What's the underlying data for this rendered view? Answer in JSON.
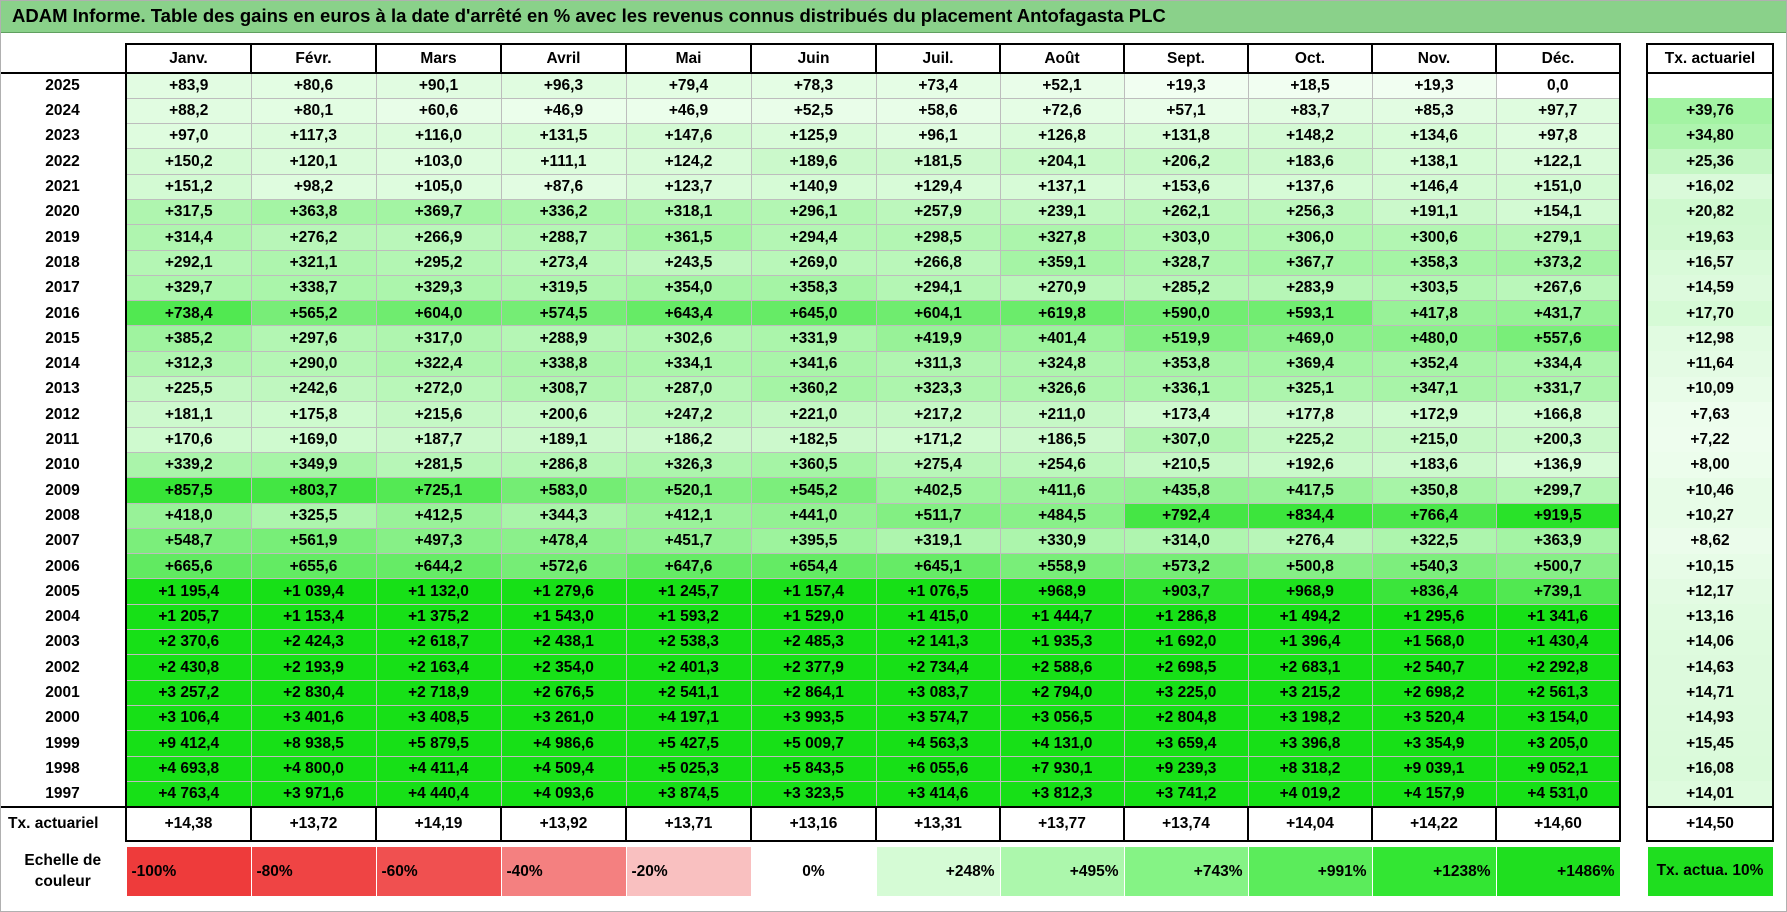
{
  "title": "ADAM Informe. Table des gains en euros à la date d'arrêté en % avec les revenus connus distribués du placement Antofagasta PLC",
  "months": [
    "Janv.",
    "Févr.",
    "Mars",
    "Avril",
    "Mai",
    "Juin",
    "Juil.",
    "Août",
    "Sept.",
    "Oct.",
    "Nov.",
    "Déc."
  ],
  "actuarial_header": "Tx. actuariel",
  "rows": [
    {
      "year": "2025",
      "values": [
        "+83,9",
        "+80,6",
        "+90,1",
        "+96,3",
        "+79,4",
        "+78,3",
        "+73,4",
        "+52,1",
        "+19,3",
        "+18,5",
        "+19,3",
        "0,0"
      ],
      "actuarial": ""
    },
    {
      "year": "2024",
      "values": [
        "+88,2",
        "+80,1",
        "+60,6",
        "+46,9",
        "+46,9",
        "+52,5",
        "+58,6",
        "+72,6",
        "+57,1",
        "+83,7",
        "+85,3",
        "+97,7"
      ],
      "actuarial": "+39,76"
    },
    {
      "year": "2023",
      "values": [
        "+97,0",
        "+117,3",
        "+116,0",
        "+131,5",
        "+147,6",
        "+125,9",
        "+96,1",
        "+126,8",
        "+131,8",
        "+148,2",
        "+134,6",
        "+97,8"
      ],
      "actuarial": "+34,80"
    },
    {
      "year": "2022",
      "values": [
        "+150,2",
        "+120,1",
        "+103,0",
        "+111,1",
        "+124,2",
        "+189,6",
        "+181,5",
        "+204,1",
        "+206,2",
        "+183,6",
        "+138,1",
        "+122,1"
      ],
      "actuarial": "+25,36"
    },
    {
      "year": "2021",
      "values": [
        "+151,2",
        "+98,2",
        "+105,0",
        "+87,6",
        "+123,7",
        "+140,9",
        "+129,4",
        "+137,1",
        "+153,6",
        "+137,6",
        "+146,4",
        "+151,0"
      ],
      "actuarial": "+16,02"
    },
    {
      "year": "2020",
      "values": [
        "+317,5",
        "+363,8",
        "+369,7",
        "+336,2",
        "+318,1",
        "+296,1",
        "+257,9",
        "+239,1",
        "+262,1",
        "+256,3",
        "+191,1",
        "+154,1"
      ],
      "actuarial": "+20,82"
    },
    {
      "year": "2019",
      "values": [
        "+314,4",
        "+276,2",
        "+266,9",
        "+288,7",
        "+361,5",
        "+294,4",
        "+298,5",
        "+327,8",
        "+303,0",
        "+306,0",
        "+300,6",
        "+279,1"
      ],
      "actuarial": "+19,63"
    },
    {
      "year": "2018",
      "values": [
        "+292,1",
        "+321,1",
        "+295,2",
        "+273,4",
        "+243,5",
        "+269,0",
        "+266,8",
        "+359,1",
        "+328,7",
        "+367,7",
        "+358,3",
        "+373,2"
      ],
      "actuarial": "+16,57"
    },
    {
      "year": "2017",
      "values": [
        "+329,7",
        "+338,7",
        "+329,3",
        "+319,5",
        "+354,0",
        "+358,3",
        "+294,1",
        "+270,9",
        "+285,2",
        "+283,9",
        "+303,5",
        "+267,6"
      ],
      "actuarial": "+14,59"
    },
    {
      "year": "2016",
      "values": [
        "+738,4",
        "+565,2",
        "+604,0",
        "+574,5",
        "+643,4",
        "+645,0",
        "+604,1",
        "+619,8",
        "+590,0",
        "+593,1",
        "+417,8",
        "+431,7"
      ],
      "actuarial": "+17,70"
    },
    {
      "year": "2015",
      "values": [
        "+385,2",
        "+297,6",
        "+317,0",
        "+288,9",
        "+302,6",
        "+331,9",
        "+419,9",
        "+401,4",
        "+519,9",
        "+469,0",
        "+480,0",
        "+557,6"
      ],
      "actuarial": "+12,98"
    },
    {
      "year": "2014",
      "values": [
        "+312,3",
        "+290,0",
        "+322,4",
        "+338,8",
        "+334,1",
        "+341,6",
        "+311,3",
        "+324,8",
        "+353,8",
        "+369,4",
        "+352,4",
        "+334,4"
      ],
      "actuarial": "+11,64"
    },
    {
      "year": "2013",
      "values": [
        "+225,5",
        "+242,6",
        "+272,0",
        "+308,7",
        "+287,0",
        "+360,2",
        "+323,3",
        "+326,6",
        "+336,1",
        "+325,1",
        "+347,1",
        "+331,7"
      ],
      "actuarial": "+10,09"
    },
    {
      "year": "2012",
      "values": [
        "+181,1",
        "+175,8",
        "+215,6",
        "+200,6",
        "+247,2",
        "+221,0",
        "+217,2",
        "+211,0",
        "+173,4",
        "+177,8",
        "+172,9",
        "+166,8"
      ],
      "actuarial": "+7,63"
    },
    {
      "year": "2011",
      "values": [
        "+170,6",
        "+169,0",
        "+187,7",
        "+189,1",
        "+186,2",
        "+182,5",
        "+171,2",
        "+186,5",
        "+307,0",
        "+225,2",
        "+215,0",
        "+200,3"
      ],
      "actuarial": "+7,22"
    },
    {
      "year": "2010",
      "values": [
        "+339,2",
        "+349,9",
        "+281,5",
        "+286,8",
        "+326,3",
        "+360,5",
        "+275,4",
        "+254,6",
        "+210,5",
        "+192,6",
        "+183,6",
        "+136,9"
      ],
      "actuarial": "+8,00"
    },
    {
      "year": "2009",
      "values": [
        "+857,5",
        "+803,7",
        "+725,1",
        "+583,0",
        "+520,1",
        "+545,2",
        "+402,5",
        "+411,6",
        "+435,8",
        "+417,5",
        "+350,8",
        "+299,7"
      ],
      "actuarial": "+10,46"
    },
    {
      "year": "2008",
      "values": [
        "+418,0",
        "+325,5",
        "+412,5",
        "+344,3",
        "+412,1",
        "+441,0",
        "+511,7",
        "+484,5",
        "+792,4",
        "+834,4",
        "+766,4",
        "+919,5"
      ],
      "actuarial": "+10,27"
    },
    {
      "year": "2007",
      "values": [
        "+548,7",
        "+561,9",
        "+497,3",
        "+478,4",
        "+451,7",
        "+395,5",
        "+319,1",
        "+330,9",
        "+314,0",
        "+276,4",
        "+322,5",
        "+363,9"
      ],
      "actuarial": "+8,62"
    },
    {
      "year": "2006",
      "values": [
        "+665,6",
        "+655,6",
        "+644,2",
        "+572,6",
        "+647,6",
        "+654,4",
        "+645,1",
        "+558,9",
        "+573,2",
        "+500,8",
        "+540,3",
        "+500,7"
      ],
      "actuarial": "+10,15"
    },
    {
      "year": "2005",
      "values": [
        "+1 195,4",
        "+1 039,4",
        "+1 132,0",
        "+1 279,6",
        "+1 245,7",
        "+1 157,4",
        "+1 076,5",
        "+968,9",
        "+903,7",
        "+968,9",
        "+836,4",
        "+739,1"
      ],
      "actuarial": "+12,17"
    },
    {
      "year": "2004",
      "values": [
        "+1 205,7",
        "+1 153,4",
        "+1 375,2",
        "+1 543,0",
        "+1 593,2",
        "+1 529,0",
        "+1 415,0",
        "+1 444,7",
        "+1 286,8",
        "+1 494,2",
        "+1 295,6",
        "+1 341,6"
      ],
      "actuarial": "+13,16"
    },
    {
      "year": "2003",
      "values": [
        "+2 370,6",
        "+2 424,3",
        "+2 618,7",
        "+2 438,1",
        "+2 538,3",
        "+2 485,3",
        "+2 141,3",
        "+1 935,3",
        "+1 692,0",
        "+1 396,4",
        "+1 568,0",
        "+1 430,4"
      ],
      "actuarial": "+14,06"
    },
    {
      "year": "2002",
      "values": [
        "+2 430,8",
        "+2 193,9",
        "+2 163,4",
        "+2 354,0",
        "+2 401,3",
        "+2 377,9",
        "+2 734,4",
        "+2 588,6",
        "+2 698,5",
        "+2 683,1",
        "+2 540,7",
        "+2 292,8"
      ],
      "actuarial": "+14,63"
    },
    {
      "year": "2001",
      "values": [
        "+3 257,2",
        "+2 830,4",
        "+2 718,9",
        "+2 676,5",
        "+2 541,1",
        "+2 864,1",
        "+3 083,7",
        "+2 794,0",
        "+3 225,0",
        "+3 215,2",
        "+2 698,2",
        "+2 561,3"
      ],
      "actuarial": "+14,71"
    },
    {
      "year": "2000",
      "values": [
        "+3 106,4",
        "+3 401,6",
        "+3 408,5",
        "+3 261,0",
        "+4 197,1",
        "+3 993,5",
        "+3 574,7",
        "+3 056,5",
        "+2 804,8",
        "+3 198,2",
        "+3 520,4",
        "+3 154,0"
      ],
      "actuarial": "+14,93"
    },
    {
      "year": "1999",
      "values": [
        "+9 412,4",
        "+8 938,5",
        "+5 879,5",
        "+4 986,6",
        "+5 427,5",
        "+5 009,7",
        "+4 563,3",
        "+4 131,0",
        "+3 659,4",
        "+3 396,8",
        "+3 354,9",
        "+3 205,0"
      ],
      "actuarial": "+15,45"
    },
    {
      "year": "1998",
      "values": [
        "+4 693,8",
        "+4 800,0",
        "+4 411,4",
        "+4 509,4",
        "+5 025,3",
        "+5 843,5",
        "+6 055,6",
        "+7 930,1",
        "+9 239,3",
        "+8 318,2",
        "+9 039,1",
        "+9 052,1"
      ],
      "actuarial": "+16,08"
    },
    {
      "year": "1997",
      "values": [
        "+4 763,4",
        "+3 971,6",
        "+4 440,4",
        "+4 093,6",
        "+3 874,5",
        "+3 323,5",
        "+3 414,6",
        "+3 812,3",
        "+3 741,2",
        "+4 019,2",
        "+4 157,9",
        "+4 531,0"
      ],
      "actuarial": "+14,01"
    }
  ],
  "footer": {
    "label": "Tx. actuariel",
    "values": [
      "+14,38",
      "+13,72",
      "+14,19",
      "+13,92",
      "+13,71",
      "+13,16",
      "+13,31",
      "+13,77",
      "+13,74",
      "+14,04",
      "+14,22",
      "+14,60"
    ],
    "total": "+14,50"
  },
  "scale": {
    "label": "Echelle de couleur",
    "items": [
      {
        "text": "-100%",
        "color": "#ee3b3b",
        "kind": "neg"
      },
      {
        "text": "-80%",
        "color": "#ef4444",
        "kind": "neg"
      },
      {
        "text": "-60%",
        "color": "#f05050",
        "kind": "neg"
      },
      {
        "text": "-40%",
        "color": "#f48080",
        "kind": "neg"
      },
      {
        "text": "-20%",
        "color": "#f9c0c0",
        "kind": "neg"
      },
      {
        "text": "0%",
        "color": "#ffffff",
        "kind": "zero"
      },
      {
        "text": "+248%",
        "color": "#d5fbd5",
        "kind": "pos"
      },
      {
        "text": "+495%",
        "color": "#acf7ac",
        "kind": "pos"
      },
      {
        "text": "+743%",
        "color": "#85f385",
        "kind": "pos"
      },
      {
        "text": "+991%",
        "color": "#5bec5b",
        "kind": "pos"
      },
      {
        "text": "+1238%",
        "color": "#33e633",
        "kind": "pos"
      },
      {
        "text": "+1486%",
        "color": "#1fdf1f",
        "kind": "pos"
      }
    ],
    "tx_label": "Tx. actua. 10%"
  }
}
